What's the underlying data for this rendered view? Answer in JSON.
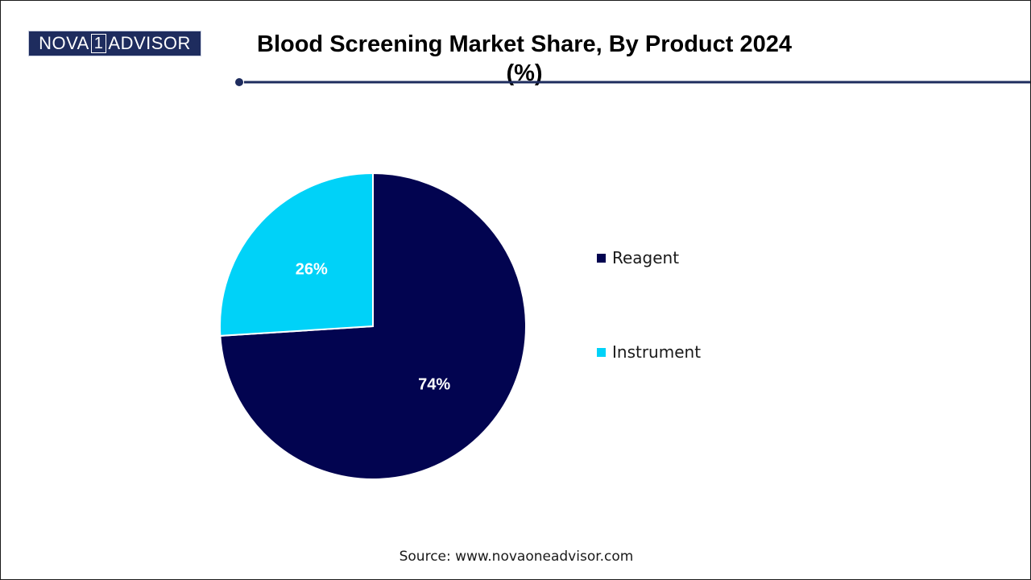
{
  "logo": {
    "part1": "NOVA",
    "part2": "1",
    "part3": "ADVISOR"
  },
  "colors": {
    "brand_navy": "#1e2c5e",
    "rule": "#1e2c5e",
    "reagent": "#020450",
    "instrument": "#00d2f8"
  },
  "chart_data": {
    "type": "pie",
    "title": "Blood Screening Market Share, By Product 2024 (%)",
    "categories": [
      "Reagent",
      "Instrument"
    ],
    "values": [
      74,
      26
    ],
    "data_labels": [
      "74%",
      "26%"
    ],
    "colors": [
      "#020450",
      "#00d2f8"
    ],
    "legend_placement": "right"
  },
  "source": "Source: www.novaoneadvisor.com"
}
